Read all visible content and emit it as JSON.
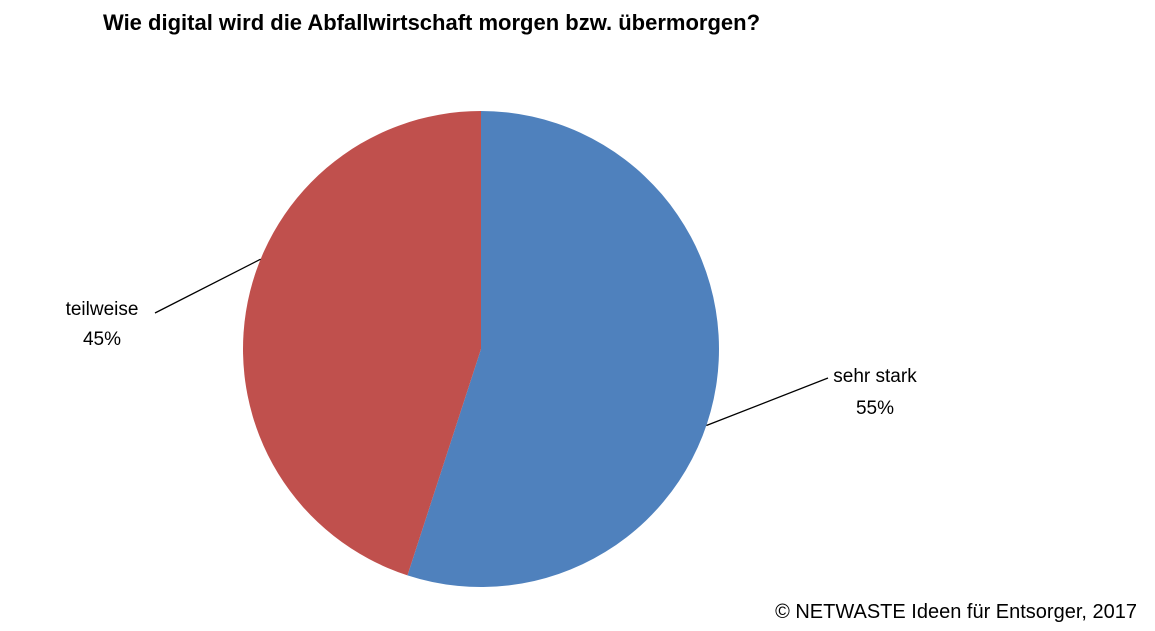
{
  "chart_data": {
    "type": "pie",
    "title": "Wie digital wird die Abfallwirtschaft morgen bzw. übermorgen?",
    "slices": [
      {
        "label": "sehr stark",
        "value": 55,
        "value_label": "55%",
        "color": "#4F81BD"
      },
      {
        "label": "teilweise",
        "value": 45,
        "value_label": "45%",
        "color": "#C0504D"
      }
    ],
    "start_angle_deg": 0,
    "direction": "clockwise",
    "legend": "none",
    "data_labels": "outside-with-leader-lines"
  },
  "footer": {
    "copyright": "© NETWASTE Ideen für Entsorger, 2017"
  }
}
